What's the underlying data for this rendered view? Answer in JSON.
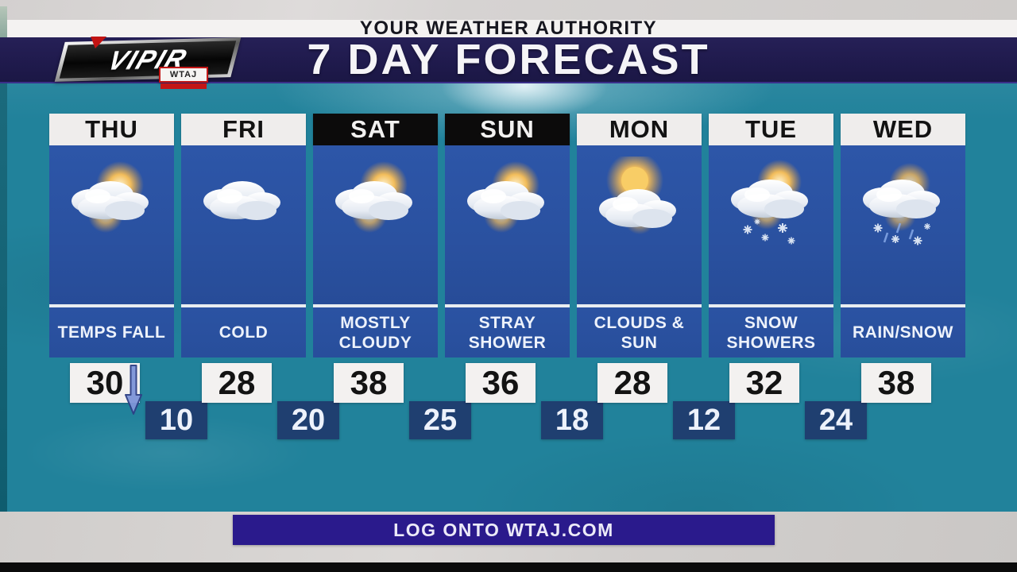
{
  "header": {
    "authority_label": "YOUR WEATHER AUTHORITY",
    "title": "7 DAY FORECAST",
    "logo": {
      "brand": "VIPIR",
      "station": "WTAJ"
    }
  },
  "days": [
    {
      "label": "THU",
      "header_style": "white",
      "icon": "sun-clouds",
      "condition": "TEMPS FALL",
      "high": "30",
      "low": "10",
      "trend": "falling"
    },
    {
      "label": "FRI",
      "header_style": "white",
      "icon": "clouds",
      "condition": "COLD",
      "high": "28",
      "low": "20",
      "trend": null
    },
    {
      "label": "SAT",
      "header_style": "black",
      "icon": "sun-clouds",
      "condition": "MOSTLY CLOUDY",
      "high": "38",
      "low": "25",
      "trend": null
    },
    {
      "label": "SUN",
      "header_style": "black",
      "icon": "sun-clouds",
      "condition": "STRAY SHOWER",
      "high": "36",
      "low": "18",
      "trend": null
    },
    {
      "label": "MON",
      "header_style": "white",
      "icon": "sun-clouds-bright",
      "condition": "CLOUDS & SUN",
      "high": "28",
      "low": "12",
      "trend": null
    },
    {
      "label": "TUE",
      "header_style": "white",
      "icon": "snow-showers",
      "condition": "SNOW SHOWERS",
      "high": "32",
      "low": "24",
      "trend": null
    },
    {
      "label": "WED",
      "header_style": "white",
      "icon": "rain-snow",
      "condition": "RAIN/SNOW",
      "high": "38",
      "low": null,
      "trend": null
    }
  ],
  "footer": {
    "cta": "LOG ONTO WTAJ.COM"
  },
  "colors": {
    "teal_background": "#21829b",
    "column_blue": "#2b52a3",
    "low_badge_blue": "#1f3f70",
    "title_banner_navy": "#201a4e",
    "footer_banner_indigo": "#2a1a8c",
    "brand_red": "#c21616",
    "header_black": "#0c0b0b",
    "header_white": "#efedec"
  }
}
